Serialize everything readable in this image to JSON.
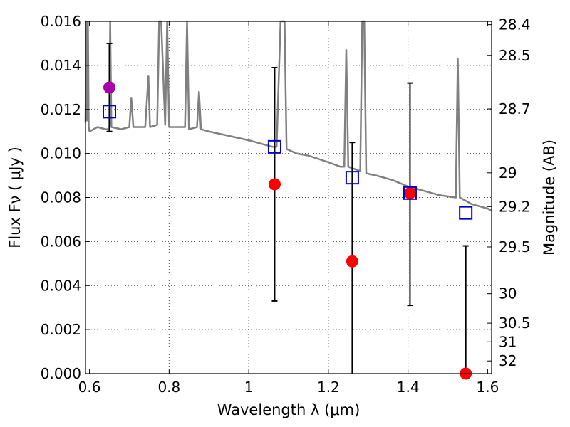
{
  "chart_data": {
    "type": "scatter",
    "title": "",
    "xlabel": "Wavelength  λ (μm)",
    "ylabel": "Flux  Fν  ( μJy )",
    "y2label": "Magnitude (AB)",
    "xlim": [
      0.59,
      1.61
    ],
    "ylim": [
      0.0,
      0.016
    ],
    "grid": true,
    "x_ticks": [
      0.6,
      0.8,
      1.0,
      1.2,
      1.4,
      1.6
    ],
    "x_tick_labels": [
      "0.6",
      "0.8",
      "1",
      "1.2",
      "1.4",
      "1.6"
    ],
    "y_ticks": [
      0.0,
      0.002,
      0.004,
      0.006,
      0.008,
      0.01,
      0.012,
      0.014,
      0.016
    ],
    "y_tick_labels": [
      "0.000",
      "0.002",
      "0.004",
      "0.006",
      "0.008",
      "0.010",
      "0.012",
      "0.014",
      "0.016"
    ],
    "y2_ticks": [
      28.4,
      28.5,
      28.7,
      29,
      29.2,
      29.5,
      30,
      30.5,
      31,
      32
    ],
    "y2_tick_labels": [
      "28.4",
      "28.5",
      "28.7",
      "29",
      "29.2",
      "29.5",
      "30",
      "30.5",
      "31",
      "32"
    ],
    "template_spectrum": {
      "color": "#808080",
      "points": [
        [
          0.59,
          0.0114
        ],
        [
          0.592,
          0.016
        ],
        [
          0.594,
          0.0115
        ],
        [
          0.596,
          0.016
        ],
        [
          0.598,
          0.0112
        ],
        [
          0.6,
          0.011
        ],
        [
          0.62,
          0.0112
        ],
        [
          0.64,
          0.0111
        ],
        [
          0.65,
          0.0111
        ],
        [
          0.652,
          0.016
        ],
        [
          0.655,
          0.0112
        ],
        [
          0.68,
          0.0111
        ],
        [
          0.7,
          0.0112
        ],
        [
          0.705,
          0.0125
        ],
        [
          0.71,
          0.0112
        ],
        [
          0.74,
          0.0112
        ],
        [
          0.748,
          0.0135
        ],
        [
          0.752,
          0.0112
        ],
        [
          0.77,
          0.0113
        ],
        [
          0.775,
          0.016
        ],
        [
          0.78,
          0.016
        ],
        [
          0.79,
          0.0113
        ],
        [
          0.795,
          0.016
        ],
        [
          0.8,
          0.0112
        ],
        [
          0.84,
          0.0112
        ],
        [
          0.845,
          0.016
        ],
        [
          0.85,
          0.0111
        ],
        [
          0.87,
          0.0112
        ],
        [
          0.875,
          0.0128
        ],
        [
          0.88,
          0.0111
        ],
        [
          0.9,
          0.011
        ],
        [
          0.95,
          0.0108
        ],
        [
          1.0,
          0.0106
        ],
        [
          1.04,
          0.0104
        ],
        [
          1.06,
          0.0103
        ],
        [
          1.07,
          0.0103
        ],
        [
          1.08,
          0.016
        ],
        [
          1.09,
          0.016
        ],
        [
          1.095,
          0.0102
        ],
        [
          1.12,
          0.01
        ],
        [
          1.15,
          0.0099
        ],
        [
          1.2,
          0.0096
        ],
        [
          1.23,
          0.0094
        ],
        [
          1.24,
          0.0094
        ],
        [
          1.245,
          0.0147
        ],
        [
          1.25,
          0.0094
        ],
        [
          1.28,
          0.0092
        ],
        [
          1.285,
          0.016
        ],
        [
          1.29,
          0.016
        ],
        [
          1.295,
          0.0091
        ],
        [
          1.32,
          0.009
        ],
        [
          1.36,
          0.0088
        ],
        [
          1.4,
          0.0085
        ],
        [
          1.44,
          0.0083
        ],
        [
          1.48,
          0.0081
        ],
        [
          1.52,
          0.008
        ],
        [
          1.525,
          0.0143
        ],
        [
          1.53,
          0.008
        ],
        [
          1.56,
          0.0077
        ],
        [
          1.6,
          0.0075
        ],
        [
          1.61,
          0.0074
        ]
      ]
    },
    "series": [
      {
        "color": "#ff0000",
        "marker": "circle",
        "points": [
          {
            "x": 1.065,
            "y": 0.0086,
            "y_low": 0.0033,
            "y_high": 0.0139
          },
          {
            "x": 1.26,
            "y": 0.0051,
            "y_low": 0.0,
            "y_high": 0.0105
          },
          {
            "x": 1.405,
            "y": 0.0082,
            "y_low": 0.0031,
            "y_high": 0.0132
          },
          {
            "x": 1.545,
            "y": 0.0,
            "y_low": 0.0,
            "y_high": 0.0058
          }
        ]
      },
      {
        "color": "#aa00aa",
        "marker": "circle",
        "points": [
          {
            "x": 0.65,
            "y": 0.013,
            "y_low": 0.011,
            "y_high": 0.015
          }
        ]
      },
      {
        "color": "#0000cc",
        "marker": "open-square",
        "points": [
          {
            "x": 0.65,
            "y": 0.0119
          },
          {
            "x": 1.065,
            "y": 0.0103
          },
          {
            "x": 1.26,
            "y": 0.0089
          },
          {
            "x": 1.405,
            "y": 0.0082
          },
          {
            "x": 1.545,
            "y": 0.0073
          }
        ]
      }
    ]
  }
}
